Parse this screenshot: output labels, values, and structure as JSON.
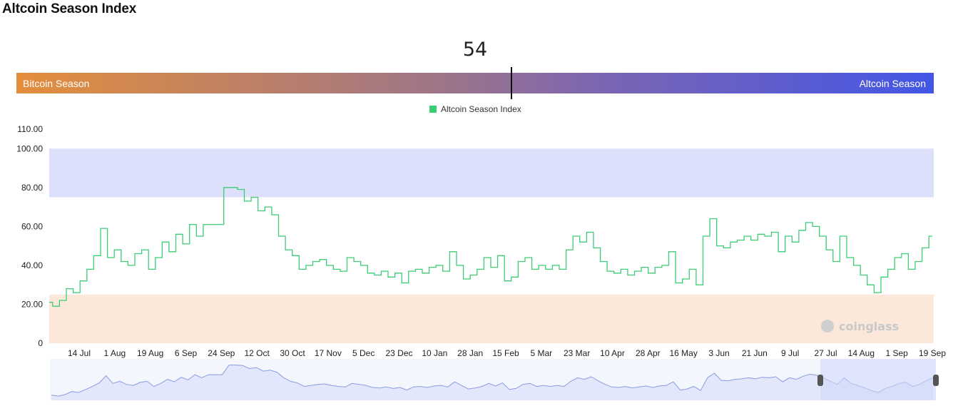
{
  "title": "Altcoin Season Index",
  "gauge": {
    "value": 54,
    "value_label": "54",
    "left_label": "Bitcoin Season",
    "right_label": "Altcoin Season"
  },
  "legend": {
    "label": "Altcoin Season Index",
    "color": "#3ccc75"
  },
  "watermark": "coinglass",
  "chart_data": {
    "type": "line",
    "ylim": [
      0,
      110
    ],
    "y_ticks": [
      "0",
      "20.00",
      "40.00",
      "60.00",
      "80.00",
      "100.00",
      "110.00"
    ],
    "y_tick_values": [
      0,
      20,
      40,
      60,
      80,
      100,
      110
    ],
    "x_ticks": [
      "14 Jul",
      "1 Aug",
      "19 Aug",
      "6 Sep",
      "24 Sep",
      "12 Oct",
      "30 Oct",
      "17 Nov",
      "5 Dec",
      "23 Dec",
      "10 Jan",
      "28 Jan",
      "15 Feb",
      "5 Mar",
      "23 Mar",
      "10 Apr",
      "28 Apr",
      "16 May",
      "3 Jun",
      "21 Jun",
      "9 Jul",
      "27 Jul",
      "14 Aug",
      "1 Sep",
      "19 Sep"
    ],
    "bands": [
      {
        "from": 75,
        "to": 100,
        "color": "#dce0fb"
      },
      {
        "from": 0,
        "to": 25,
        "color": "#fbe8da"
      }
    ],
    "series": [
      {
        "name": "Altcoin Season Index",
        "color": "#3ccc75",
        "values": [
          21,
          19,
          22,
          28,
          26,
          32,
          38,
          45,
          59,
          44,
          48,
          42,
          40,
          46,
          48,
          38,
          44,
          52,
          47,
          56,
          51,
          61,
          55,
          61,
          61,
          61,
          80,
          80,
          79,
          73,
          75,
          68,
          70,
          66,
          55,
          48,
          45,
          38,
          40,
          42,
          43,
          40,
          38,
          37,
          44,
          42,
          40,
          36,
          35,
          37,
          34,
          36,
          31,
          37,
          38,
          36,
          39,
          40,
          37,
          47,
          40,
          33,
          35,
          38,
          44,
          39,
          45,
          32,
          34,
          42,
          44,
          38,
          40,
          38,
          40,
          38,
          48,
          55,
          52,
          57,
          49,
          42,
          37,
          36,
          38,
          35,
          37,
          39,
          36,
          39,
          40,
          47,
          31,
          33,
          38,
          30,
          55,
          64,
          50,
          49,
          52,
          53,
          55,
          53,
          56,
          55,
          57,
          47,
          55,
          52,
          58,
          62,
          60,
          55,
          48,
          42,
          55,
          44,
          40,
          35,
          30,
          26,
          34,
          38,
          44,
          46,
          38,
          42,
          49,
          55
        ]
      }
    ]
  }
}
